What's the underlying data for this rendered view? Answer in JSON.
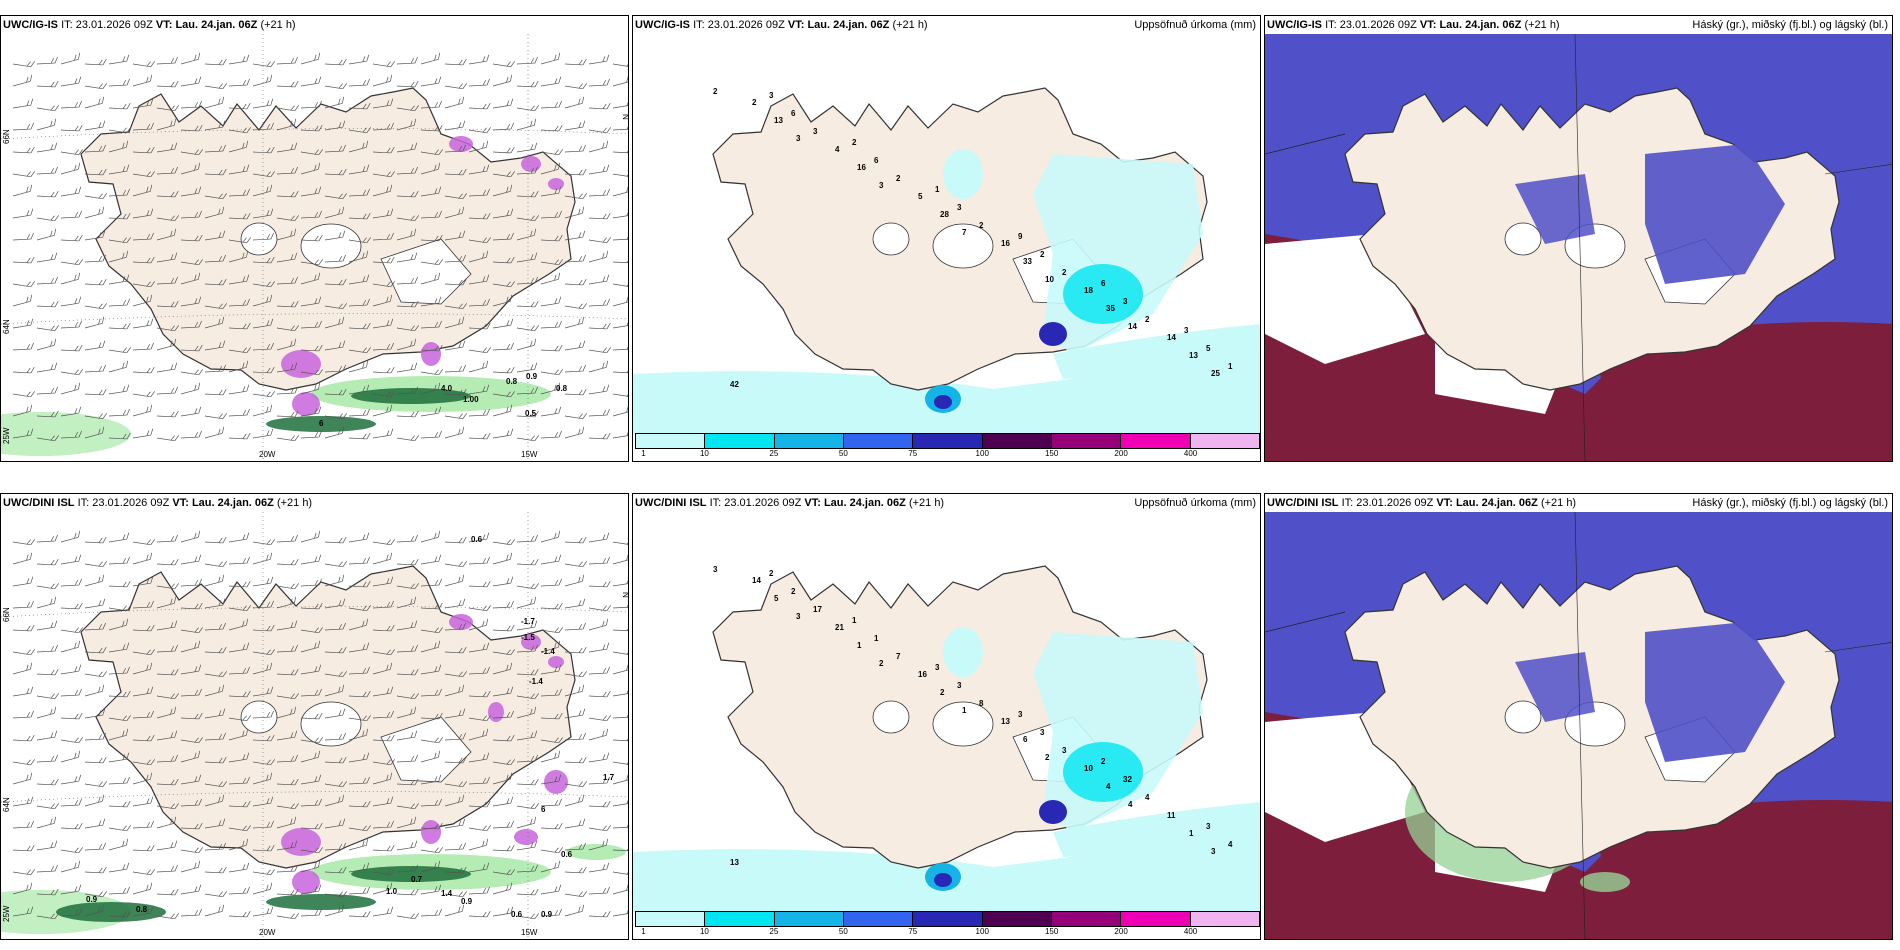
{
  "panels": [
    {
      "id": "ig_wind",
      "model": "UWC/IG-IS",
      "it_label": "IT:",
      "it": "23.01.2026 09Z",
      "vt_label": "VT:",
      "vt": "Lau. 24.jan. 06Z",
      "lead": "(+21 h)",
      "right": ""
    },
    {
      "id": "ig_precip",
      "model": "UWC/IG-IS",
      "it_label": "IT:",
      "it": "23.01.2026 09Z",
      "vt_label": "VT:",
      "vt": "Lau. 24.jan. 06Z",
      "lead": "(+21 h)",
      "right": "Uppsöfnuð úrkoma (mm)"
    },
    {
      "id": "ig_cloud",
      "model": "UWC/IG-IS",
      "it_label": "IT:",
      "it": "23.01.2026 09Z",
      "vt_label": "VT:",
      "vt": "Lau. 24.jan. 06Z",
      "lead": "(+21 h)",
      "right": "Háský (gr.), miðský (fj.bl.) og lágský (bl.)"
    },
    {
      "id": "dini_wind",
      "model": "UWC/DINI ISL",
      "it_label": "IT:",
      "it": "23.01.2026 09Z",
      "vt_label": "VT:",
      "vt": "Lau. 24.jan. 06Z",
      "lead": "(+21 h)",
      "right": ""
    },
    {
      "id": "dini_precip",
      "model": "UWC/DINI ISL",
      "it_label": "IT:",
      "it": "23.01.2026 09Z",
      "vt_label": "VT:",
      "vt": "Lau. 24.jan. 06Z",
      "lead": "(+21 h)",
      "right": "Uppsöfnuð úrkoma (mm)"
    },
    {
      "id": "dini_cloud",
      "model": "UWC/DINI ISL",
      "it_label": "IT:",
      "it": "23.01.2026 09Z",
      "vt_label": "VT:",
      "vt": "Lau. 24.jan. 06Z",
      "lead": "(+21 h)",
      "right": "Háský (gr.), miðský (fj.bl.) og lágský (bl.)"
    }
  ],
  "axes": {
    "lon_20": "20W",
    "lon_15": "15W",
    "lat_66": "66N",
    "lat_64": "64N",
    "lat_n": "N",
    "lat_w": "25W"
  },
  "precip_scale": {
    "ticks": [
      "1",
      "10",
      "25",
      "50",
      "75",
      "100",
      "150",
      "200",
      "400"
    ],
    "colors": [
      "#c8fafa",
      "#00e6f0",
      "#14b4e6",
      "#3264f0",
      "#2828b4",
      "#500050",
      "#960078",
      "#f000b4",
      "#f0b4f0"
    ]
  },
  "colors": {
    "land": "#f7ece1",
    "land_line": "#333333",
    "green_light": "#b4ecb4",
    "green_dark": "#1e6e3c",
    "magenta": "#c864dc",
    "cloud_high": "#96d296",
    "cloud_mid": "#5050c8",
    "cloud_low": "#7d1e3c"
  },
  "ig_wind_labels": [
    "0.8",
    "0.9",
    "0.8",
    "1.00",
    "0.5",
    "4.0",
    "6"
  ],
  "ig_precip_labels": [
    "2",
    "3",
    "3",
    "7",
    "10",
    "14",
    "25",
    "13",
    "16",
    "28",
    "33",
    "35",
    "13",
    "2",
    "4",
    "5",
    "16",
    "18",
    "14",
    "42",
    "3",
    "2",
    "2",
    "2",
    "2",
    "1",
    "6",
    "6",
    "3",
    "2",
    "3",
    "5",
    "3",
    "2",
    "1",
    "9",
    "6",
    "3"
  ],
  "dini_wind_labels": [
    "0.6",
    "-1.7",
    "-1.4",
    "-1.5",
    "-1.4",
    "6",
    "0.9",
    "0.8",
    "1.0",
    "0.7",
    "1.4",
    "0.9",
    "0.6",
    "0.9",
    "1.7",
    "0.6"
  ],
  "dini_precip_labels": [
    "3",
    "3",
    "2",
    "1",
    "2",
    "4",
    "3",
    "5",
    "1",
    "2",
    "6",
    "4",
    "1",
    "14",
    "21",
    "16",
    "13",
    "10",
    "11",
    "13",
    "17",
    "7",
    "8",
    "3",
    "4",
    "4",
    "2",
    "1",
    "3",
    "3",
    "32",
    "3",
    "2",
    "1",
    "3",
    "3",
    "2"
  ]
}
